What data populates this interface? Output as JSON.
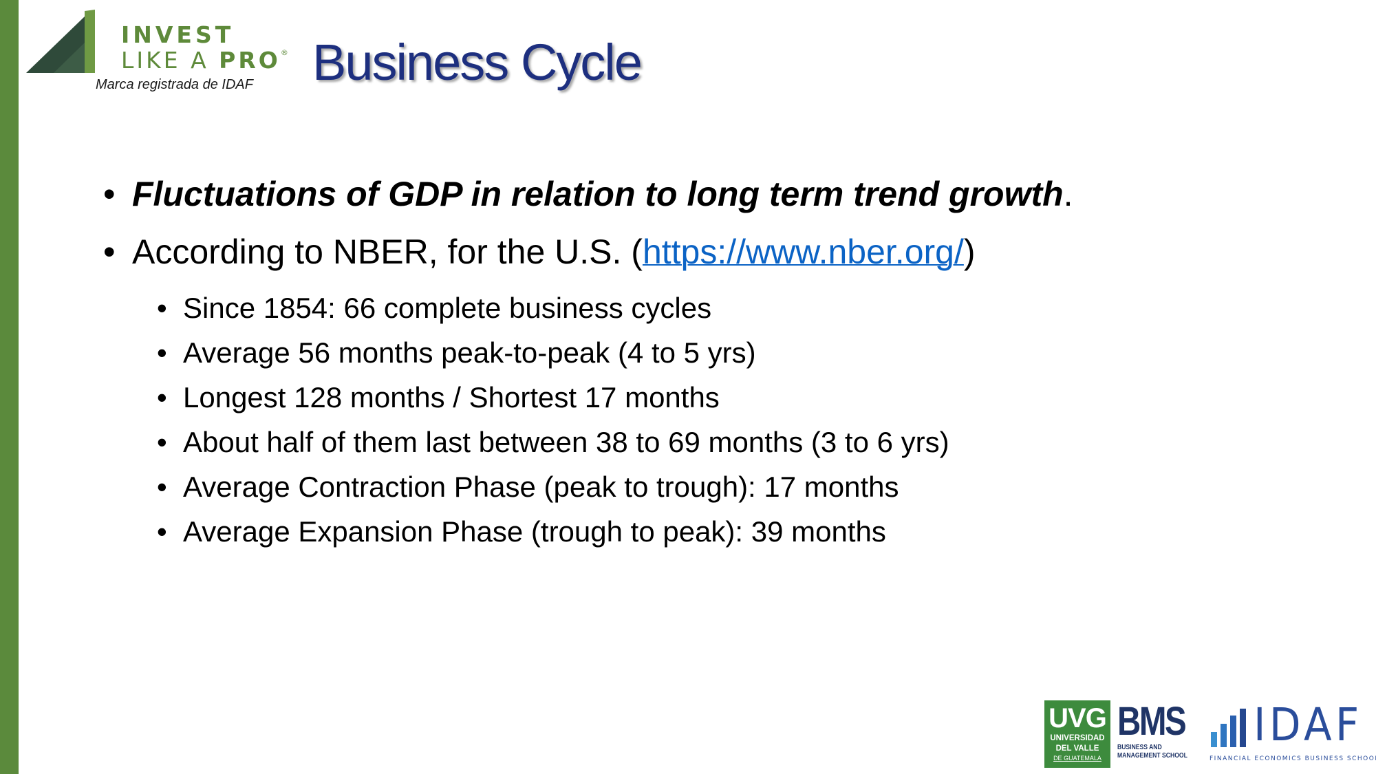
{
  "logo": {
    "line1": "INVEST",
    "line2_a": "LIKE A ",
    "line2_b": "PRO",
    "registered": "®",
    "tagline": "Marca registrada de IDAF"
  },
  "slide": {
    "title": "Business Cycle"
  },
  "bullets": {
    "b1": {
      "text": "Fluctuations of GDP in relation to long term trend growth",
      "suffix": "."
    },
    "b2": {
      "prefix": "According to NBER, for the U.S. (",
      "link": "https://www.nber.org/",
      "suffix": ")"
    },
    "sub": [
      "Since 1854: 66 complete business cycles",
      "Average 56 months peak-to-peak (4 to 5 yrs)",
      "Longest 128 months / Shortest 17 months",
      "About half of them last between 38 to 69 months (3 to 6 yrs)",
      "Average Contraction Phase (peak to trough): 17 months",
      "Average Expansion Phase (trough to peak): 39 months"
    ],
    "bullet_char": "•"
  },
  "footer": {
    "uvg": {
      "big": "UVG",
      "line1": "UNIVERSIDAD",
      "line2": "DEL VALLE",
      "line3": "DE GUATEMALA"
    },
    "bms": {
      "big": "BMS",
      "line1": "BUSINESS AND",
      "line2": "MANAGEMENT SCHOOL"
    },
    "idaf": {
      "big": "IDAF",
      "sub": "FINANCIAL ECONOMICS BUSINESS SCHOOL"
    }
  },
  "colors": {
    "accent_green": "#5b8a3c",
    "title_navy": "#1d2f7f",
    "link_blue": "#0b63c5"
  }
}
